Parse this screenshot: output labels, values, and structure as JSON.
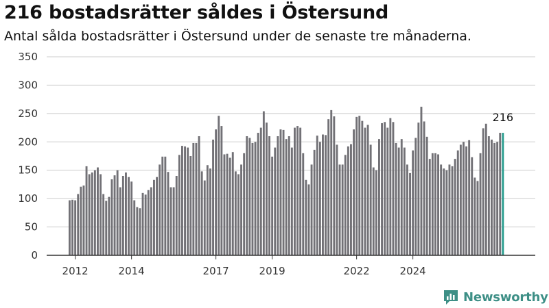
{
  "title": "216 bostadsrätter såldes i Östersund",
  "subtitle": "Antal sålda bostadsrätter i Östersund under de senaste tre månaderna.",
  "brand": {
    "name": "Newsworthy",
    "color": "#3d8f86"
  },
  "colors": {
    "bars": "#727176",
    "highlight": "#2a9d8f",
    "grid": "#cccccc"
  },
  "chart_data": {
    "type": "bar",
    "x_tick_labels": [
      "2012",
      "2014",
      "2017",
      "2019",
      "2022",
      "2024"
    ],
    "x_tick_indices": [
      2,
      22,
      52,
      72,
      102,
      122
    ],
    "y_ticks": [
      0,
      50,
      100,
      150,
      200,
      250,
      300,
      350
    ],
    "ylim": [
      0,
      350
    ],
    "grid": true,
    "last_value_label": "216",
    "values": [
      97,
      98,
      97,
      108,
      121,
      123,
      157,
      143,
      146,
      150,
      155,
      143,
      108,
      96,
      103,
      134,
      141,
      150,
      120,
      140,
      146,
      138,
      130,
      97,
      85,
      83,
      110,
      107,
      115,
      120,
      133,
      138,
      160,
      174,
      174,
      147,
      120,
      120,
      140,
      177,
      193,
      192,
      190,
      175,
      198,
      198,
      210,
      148,
      132,
      159,
      153,
      204,
      222,
      246,
      228,
      178,
      179,
      172,
      182,
      148,
      143,
      160,
      180,
      210,
      207,
      198,
      200,
      216,
      225,
      254,
      234,
      210,
      174,
      190,
      210,
      222,
      221,
      205,
      210,
      190,
      225,
      228,
      225,
      180,
      133,
      125,
      160,
      186,
      211,
      200,
      213,
      212,
      240,
      256,
      245,
      195,
      160,
      160,
      177,
      192,
      196,
      222,
      244,
      246,
      237,
      225,
      230,
      195,
      155,
      150,
      205,
      233,
      235,
      225,
      242,
      235,
      198,
      190,
      205,
      190,
      160,
      145,
      185,
      207,
      234,
      262,
      236,
      209,
      170,
      180,
      180,
      178,
      160,
      153,
      150,
      160,
      157,
      170,
      185,
      195,
      200,
      192,
      203,
      173,
      137,
      131,
      180,
      224,
      232,
      210,
      204,
      198,
      200,
      216,
      216
    ]
  }
}
